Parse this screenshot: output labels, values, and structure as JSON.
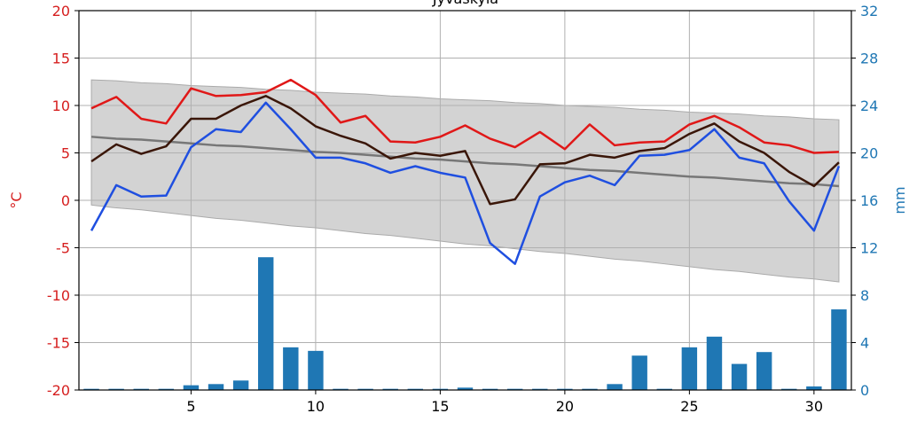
{
  "chart_data": {
    "type": "line",
    "title": "Jyväskylä",
    "ylabel": "°C",
    "y2label": "mm",
    "x": [
      1,
      2,
      3,
      4,
      5,
      6,
      7,
      8,
      9,
      10,
      11,
      12,
      13,
      14,
      15,
      16,
      17,
      18,
      19,
      20,
      21,
      22,
      23,
      24,
      25,
      26,
      27,
      28,
      29,
      30,
      31
    ],
    "xlim": [
      0.5,
      31.5
    ],
    "xticks": [
      5,
      10,
      15,
      20,
      25,
      30
    ],
    "ylim": [
      -20,
      20
    ],
    "yticks": [
      -20,
      -15,
      -10,
      -5,
      0,
      5,
      10,
      15,
      20
    ],
    "y2lim": [
      0,
      32
    ],
    "y2ticks": [
      0,
      4,
      8,
      12,
      16,
      20,
      24,
      28,
      32
    ],
    "grid": true,
    "band": {
      "color": "#d3d3d3",
      "upper": [
        12.7,
        12.6,
        12.4,
        12.3,
        12.1,
        12.0,
        11.9,
        11.7,
        11.6,
        11.4,
        11.3,
        11.2,
        11.0,
        10.9,
        10.7,
        10.6,
        10.5,
        10.3,
        10.2,
        10.0,
        9.9,
        9.8,
        9.6,
        9.5,
        9.3,
        9.2,
        9.1,
        8.9,
        8.8,
        8.6,
        8.5
      ],
      "lower": [
        -0.5,
        -0.8,
        -1.0,
        -1.3,
        -1.6,
        -1.9,
        -2.1,
        -2.4,
        -2.7,
        -2.9,
        -3.2,
        -3.5,
        -3.7,
        -4.0,
        -4.3,
        -4.6,
        -4.8,
        -5.1,
        -5.4,
        -5.6,
        -5.9,
        -6.2,
        -6.4,
        -6.7,
        -7.0,
        -7.3,
        -7.5,
        -7.8,
        -8.1,
        -8.3,
        -8.6
      ]
    },
    "series": [
      {
        "type": "bar",
        "axis": "y2",
        "color": "#1f77b4",
        "values": [
          0.1,
          0.1,
          0.1,
          0.1,
          0.4,
          0.5,
          0.8,
          11.2,
          3.6,
          3.3,
          0.1,
          0.1,
          0.1,
          0.1,
          0.1,
          0.2,
          0.1,
          0.1,
          0.1,
          0.1,
          0.1,
          0.5,
          2.9,
          0.1,
          3.6,
          4.5,
          2.2,
          3.2,
          0.1,
          0.3,
          6.8
        ]
      },
      {
        "type": "line",
        "color": "#777777",
        "values": [
          6.7,
          6.5,
          6.4,
          6.2,
          6.0,
          5.8,
          5.7,
          5.5,
          5.3,
          5.1,
          5.0,
          4.8,
          4.6,
          4.4,
          4.3,
          4.1,
          3.9,
          3.8,
          3.6,
          3.4,
          3.2,
          3.1,
          2.9,
          2.7,
          2.5,
          2.4,
          2.2,
          2.0,
          1.8,
          1.7,
          1.5
        ]
      },
      {
        "type": "line",
        "color": "#e01818",
        "values": [
          9.7,
          10.9,
          8.6,
          8.1,
          11.8,
          11.0,
          11.1,
          11.4,
          12.7,
          11.1,
          8.2,
          8.9,
          6.2,
          6.1,
          6.7,
          7.9,
          6.5,
          5.6,
          7.2,
          5.4,
          8.0,
          5.8,
          6.1,
          6.2,
          8.0,
          8.9,
          7.7,
          6.1,
          5.8,
          5.0,
          5.1
        ]
      },
      {
        "type": "line",
        "color": "#1f4fe0",
        "values": [
          -3.2,
          1.6,
          0.4,
          0.5,
          5.6,
          7.5,
          7.2,
          10.3,
          7.5,
          4.5,
          4.5,
          3.9,
          2.9,
          3.6,
          2.9,
          2.4,
          -4.5,
          -6.7,
          0.4,
          1.9,
          2.6,
          1.6,
          4.7,
          4.8,
          5.3,
          7.5,
          4.5,
          3.9,
          -0.1,
          -3.2,
          3.6
        ]
      },
      {
        "type": "line",
        "color": "#3a1608",
        "values": [
          4.1,
          5.9,
          4.9,
          5.7,
          8.6,
          8.6,
          10.0,
          11.0,
          9.7,
          7.8,
          6.8,
          6.0,
          4.4,
          5.0,
          4.7,
          5.2,
          -0.4,
          0.1,
          3.8,
          3.9,
          4.8,
          4.5,
          5.2,
          5.5,
          7.0,
          8.1,
          6.2,
          5.0,
          3.0,
          1.5,
          4.0
        ]
      }
    ]
  }
}
